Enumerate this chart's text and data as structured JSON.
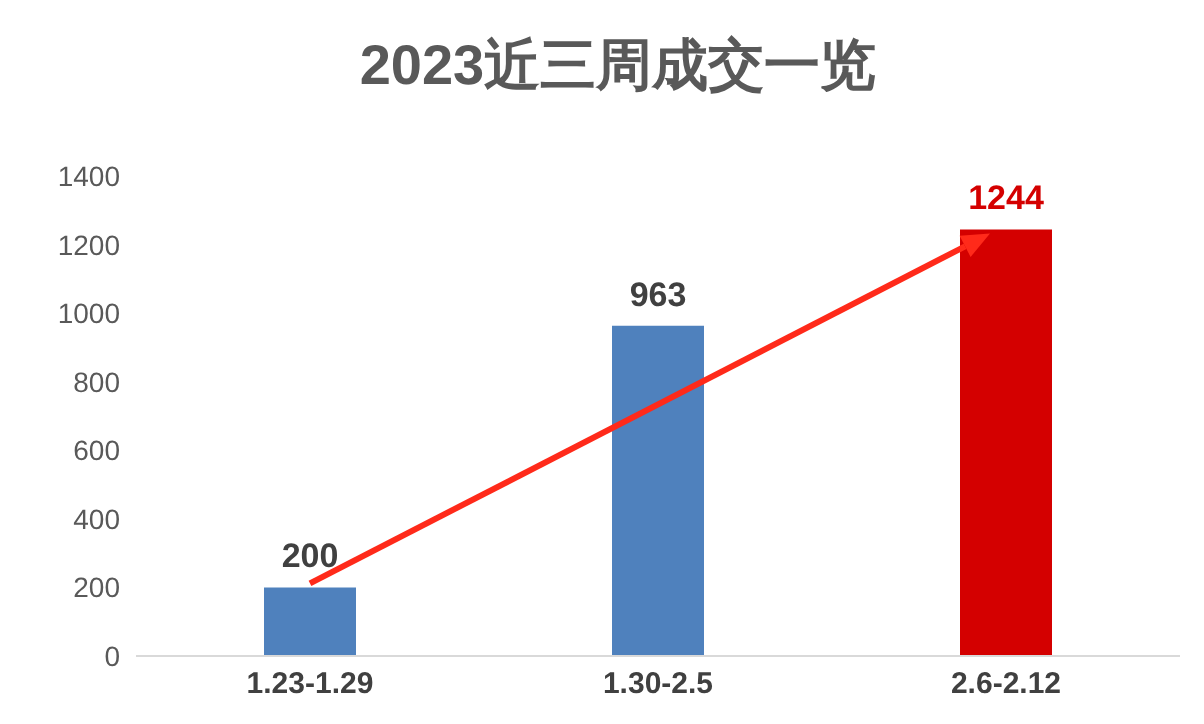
{
  "chart_data": {
    "type": "bar",
    "title": "2023近三周成交一览",
    "categories": [
      "1.23-1.29",
      "1.30-2.5",
      "2.6-2.12"
    ],
    "values": [
      200,
      963,
      1244
    ],
    "colors": [
      "#4f81bd",
      "#4f81bd",
      "#d40000"
    ],
    "ylim": [
      0,
      1400
    ],
    "yticks": [
      0,
      200,
      400,
      600,
      800,
      1000,
      1200,
      1400
    ],
    "data_labels": true
  }
}
